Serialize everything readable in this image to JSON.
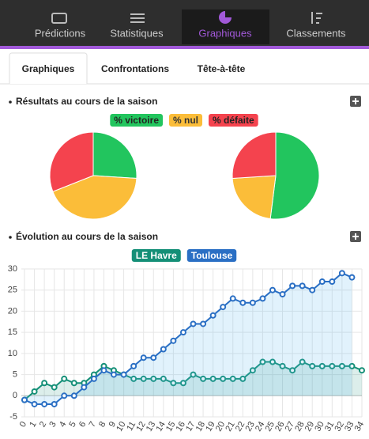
{
  "nav": [
    "Prédictions",
    "Statistiques",
    "Graphiques",
    "Classements"
  ],
  "tabs": [
    "Graphiques",
    "Confrontations",
    "Tête-à-tête"
  ],
  "chart_data": [
    {
      "type": "pie",
      "title": "Résultats au cours de la saison",
      "labels": [
        "% victoire",
        "% nul",
        "% défaite"
      ],
      "colors": [
        "#22c55e",
        "#fbbd39",
        "#f4434e"
      ],
      "pies": [
        [
          26,
          43,
          31
        ],
        [
          52,
          22,
          26
        ]
      ]
    },
    {
      "type": "line",
      "title": "Évolution au cours de la saison",
      "categories": [
        "0",
        "1",
        "2",
        "3",
        "4",
        "5",
        "6",
        "7",
        "8",
        "9",
        "10",
        "11",
        "12",
        "13",
        "14",
        "15",
        "16",
        "17",
        "18",
        "19",
        "20",
        "21",
        "22",
        "23",
        "24",
        "25",
        "26",
        "27",
        "28",
        "29",
        "30",
        "31",
        "32",
        "33",
        "34"
      ],
      "series": [
        {
          "name": "LE Havre",
          "color": "#148f77",
          "values": [
            -1,
            1,
            3,
            2,
            4,
            3,
            3,
            5,
            7,
            6,
            5,
            4,
            4,
            4,
            4,
            3,
            3,
            5,
            4,
            4,
            4,
            4,
            4,
            6,
            8,
            8,
            7,
            6,
            8,
            7,
            7,
            7,
            7,
            7,
            6
          ]
        },
        {
          "name": "Toulouse",
          "color": "#2a6fc4",
          "values": [
            -1,
            -2,
            -2,
            -2,
            0,
            0,
            2,
            4,
            6,
            5,
            5,
            7,
            9,
            9,
            11,
            13,
            15,
            17,
            17,
            19,
            21,
            23,
            22,
            22,
            23,
            25,
            24,
            26,
            26,
            25,
            27,
            27,
            29,
            28,
            null
          ]
        }
      ],
      "ylim": [
        -5,
        30
      ],
      "yticks": [
        -5,
        0,
        5,
        10,
        15,
        20,
        25,
        30
      ],
      "grid": true
    }
  ]
}
